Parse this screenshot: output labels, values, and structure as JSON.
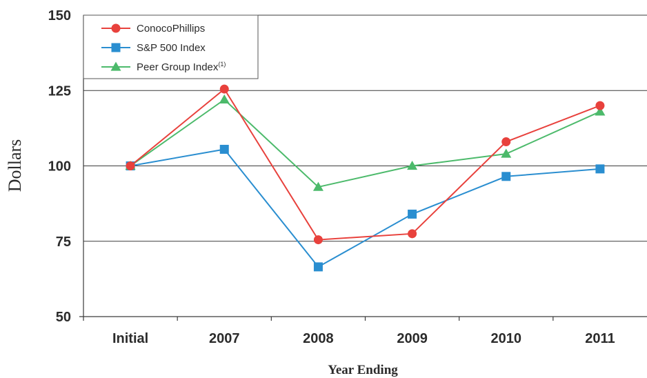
{
  "chart_data": {
    "type": "line",
    "title": "",
    "xlabel": "Year Ending",
    "ylabel": "Dollars",
    "categories": [
      "Initial",
      "2007",
      "2008",
      "2009",
      "2010",
      "2011"
    ],
    "ylim": [
      50,
      150
    ],
    "yticks": [
      50,
      75,
      100,
      125,
      150
    ],
    "grid": "horizontal",
    "legend_position": "top-left",
    "series": [
      {
        "name": "ConocoPhillips",
        "marker": "circle",
        "color": "#e8413c",
        "values": [
          100,
          125.5,
          75.5,
          77.5,
          108,
          120
        ]
      },
      {
        "name": "S&P 500 Index",
        "marker": "square",
        "color": "#2a8ed0",
        "values": [
          100,
          105.5,
          66.5,
          84,
          96.5,
          99
        ]
      },
      {
        "name": "Peer Group Index",
        "legend_superscript": "(1)",
        "marker": "triangle",
        "color": "#4cba6b",
        "values": [
          100,
          122,
          93,
          100,
          104,
          118
        ]
      }
    ]
  }
}
